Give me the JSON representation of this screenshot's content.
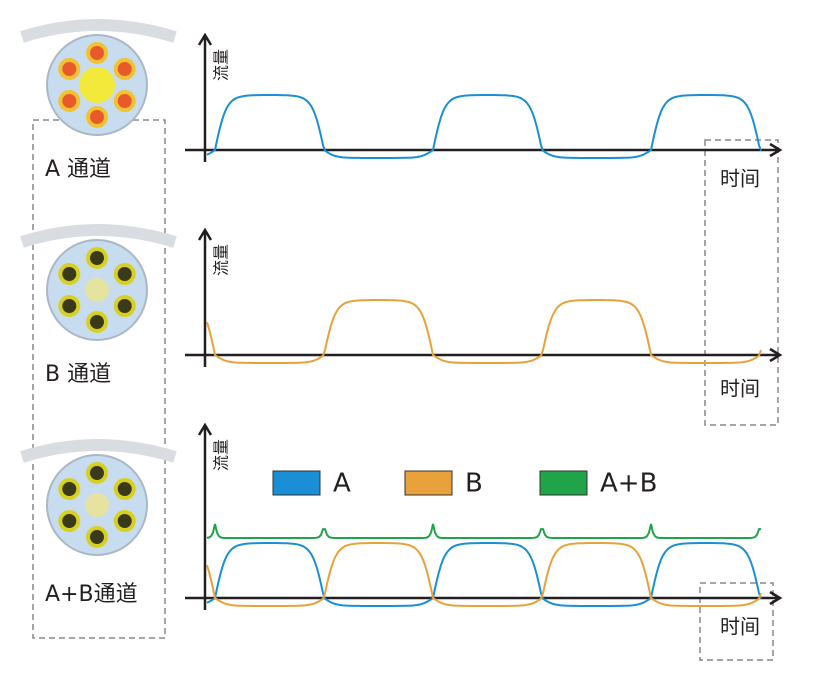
{
  "channels": [
    {
      "label": "A 通道",
      "y_axis_label": "流量",
      "x_axis_label": "时间"
    },
    {
      "label": "B 通道",
      "y_axis_label": "流量",
      "x_axis_label": "时间"
    },
    {
      "label": "A+B通道",
      "y_axis_label": "流量",
      "x_axis_label": "时间"
    }
  ],
  "legend": [
    {
      "name": "A",
      "color": "#1a8fd6"
    },
    {
      "name": "B",
      "color": "#e9a23b"
    },
    {
      "name": "A+B",
      "color": "#1fa44a"
    }
  ]
}
